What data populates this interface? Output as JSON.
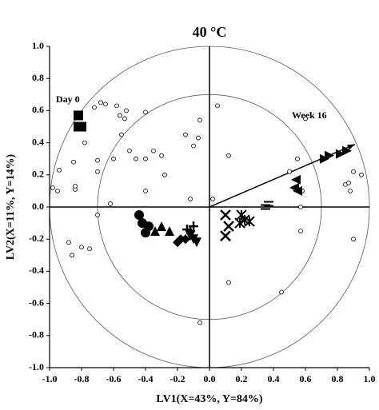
{
  "chart_data": {
    "type": "scatter",
    "title": "40 °C",
    "x_label": "LV1(X=43%, Y=84%)",
    "y_label": "LV2(X=11%, Y=14%)",
    "annotations": [
      "Day 0",
      "Week 16"
    ],
    "xlim": [
      -1.0,
      1.0
    ],
    "ylim": [
      -1.0,
      1.0
    ],
    "xticks": [
      {
        "value": -1.0,
        "label": "-1.0"
      },
      -0.8,
      -0.6,
      -0.4,
      -0.2,
      {
        "value": 0,
        "label": "0.0"
      },
      0.2,
      0.4,
      0.6,
      0.8,
      {
        "value": 1.0,
        "label": "1.0"
      }
    ],
    "yticks": [
      {
        "value": -1.0,
        "label": "-1.0"
      },
      -0.8,
      -0.6,
      -0.4,
      -0.2,
      {
        "value": 0,
        "label": "0.0"
      },
      0.2,
      0.4,
      0.6,
      0.8,
      {
        "value": 1.0,
        "label": "1.0"
      }
    ],
    "circle_radii": [
      0.7,
      1.0
    ],
    "arrow": {
      "x": 0.91,
      "y": 0.39
    },
    "series": [
      {
        "marker": "open-circle",
        "color": "#000000",
        "x": [
          -0.78,
          -0.95,
          -0.98,
          -0.94,
          -0.85,
          -0.84,
          -0.84,
          -0.7,
          -0.7,
          -0.72,
          -0.68,
          -0.65,
          -0.58,
          -0.56,
          -0.53,
          -0.52,
          -0.55,
          -0.5,
          -0.46,
          -0.4,
          -0.4,
          -0.6,
          -0.62,
          -0.7,
          -0.88,
          -0.86,
          -0.8,
          -0.75,
          -0.4,
          -0.35,
          -0.3,
          -0.28,
          -0.12,
          -0.07,
          -0.06,
          -0.1,
          -0.15,
          0.12,
          0.05,
          0.55,
          0.5,
          0.6,
          0.58,
          0.57,
          0.85,
          0.87,
          0.88,
          0.9,
          0.95,
          0.9,
          0.57,
          0.45,
          0.12,
          -0.06,
          0.02
        ],
        "values": [
          0.4,
          0.1,
          0.12,
          0.23,
          0.28,
          0.11,
          0.13,
          0.29,
          0.22,
          0.62,
          0.65,
          0.64,
          0.63,
          0.57,
          0.55,
          0.6,
          0.45,
          0.35,
          0.3,
          0.3,
          0.1,
          0.3,
          0.02,
          -0.05,
          -0.22,
          -0.3,
          -0.25,
          -0.26,
          0.59,
          0.35,
          0.32,
          0.2,
          0.05,
          0.43,
          0.54,
          0.38,
          0.45,
          0.32,
          0.63,
          0.3,
          0.22,
          0.55,
          0.1,
          0.0,
          0.14,
          0.15,
          0.1,
          0.22,
          0.2,
          -0.2,
          -0.15,
          -0.53,
          -0.47,
          -0.72,
          0.05
        ]
      },
      {
        "marker": "square",
        "color": "#000000",
        "x": [
          -0.82,
          -0.82,
          -0.8
        ],
        "values": [
          0.57,
          0.5,
          0.5
        ]
      },
      {
        "marker": "circle",
        "color": "#000000",
        "x": [
          -0.44,
          -0.42,
          -0.4,
          -0.38
        ],
        "values": [
          -0.05,
          -0.1,
          -0.16,
          -0.12
        ]
      },
      {
        "marker": "triangle-up",
        "color": "#000000",
        "x": [
          -0.34,
          -0.3,
          -0.25
        ],
        "values": [
          -0.15,
          -0.12,
          -0.15
        ]
      },
      {
        "marker": "diamond",
        "color": "#000000",
        "x": [
          -0.18,
          -0.2,
          -0.15
        ],
        "values": [
          -0.2,
          -0.22,
          -0.2
        ]
      },
      {
        "marker": "triangle-down",
        "color": "#000000",
        "x": [
          -0.1,
          -0.08,
          -0.12
        ],
        "values": [
          -0.2,
          -0.22,
          -0.18
        ]
      },
      {
        "marker": "plus",
        "color": "#000000",
        "x": [
          -0.12,
          -0.1,
          -0.14
        ],
        "values": [
          -0.15,
          -0.12,
          -0.14
        ]
      },
      {
        "marker": "cross",
        "color": "#000000",
        "x": [
          0.1,
          0.1,
          0.12
        ],
        "values": [
          -0.05,
          -0.18,
          -0.12
        ]
      },
      {
        "marker": "asterisk",
        "color": "#000000",
        "x": [
          0.2,
          0.22,
          0.25,
          0.19
        ],
        "values": [
          -0.05,
          -0.08,
          -0.09,
          -0.1
        ]
      },
      {
        "marker": "equal",
        "color": "#000000",
        "x": [
          0.35,
          0.37
        ],
        "values": [
          0.0,
          0.02
        ]
      },
      {
        "marker": "triangle-left",
        "color": "#000000",
        "x": [
          0.53,
          0.55,
          0.54
        ],
        "values": [
          0.12,
          0.1,
          0.17
        ]
      },
      {
        "marker": "triangle-right",
        "color": "#000000",
        "x": [
          0.72,
          0.75,
          0.82,
          0.86
        ],
        "values": [
          0.3,
          0.32,
          0.33,
          0.35
        ]
      }
    ]
  }
}
